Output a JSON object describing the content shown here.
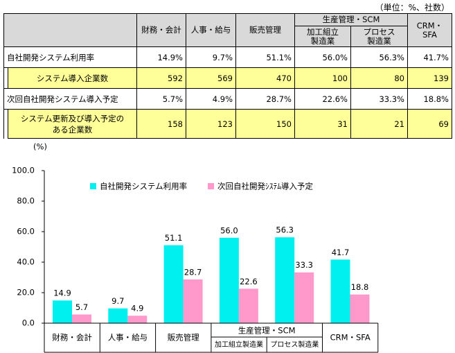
{
  "table": {
    "unit": "（単位：%、社数）",
    "group_header": "生産管理・SCM",
    "columns": [
      "財務・会計",
      "人事・給与",
      "販売管理",
      "加工組立\n製造業",
      "プロセス\n製造業",
      "CRM・SFA"
    ],
    "rows": [
      {
        "label": "自社開発システム利用率",
        "values": [
          "14.9%",
          "9.7%",
          "51.1%",
          "56.0%",
          "56.3%",
          "41.7%"
        ]
      },
      {
        "label": "システム導入企業数",
        "values": [
          "592",
          "569",
          "470",
          "100",
          "80",
          "139"
        ]
      },
      {
        "label": "次回自社開発システム導入予定",
        "values": [
          "5.7%",
          "4.9%",
          "28.7%",
          "22.6%",
          "33.3%",
          "18.8%"
        ]
      },
      {
        "label": "システム更新及び導入予定の\nある企業数",
        "values": [
          "158",
          "123",
          "150",
          "31",
          "21",
          "69"
        ]
      }
    ]
  },
  "chart_data": {
    "type": "bar",
    "y_label": "(%)",
    "group_label": "生産管理・SCM",
    "categories": [
      "財務・会計",
      "人事・給与",
      "販売管理",
      "加工組立製造業",
      "プロセス製造業",
      "CRM・SFA"
    ],
    "series": [
      {
        "name": "自社開発システム利用率",
        "color": "#00f0f0",
        "values": [
          14.9,
          9.7,
          51.1,
          56.0,
          56.3,
          41.7
        ],
        "value_labels": [
          "14.9",
          "9.7",
          "51.1",
          "56.0",
          "56.3",
          "41.7"
        ]
      },
      {
        "name": "次回自社開発ｼｽﾃﾑ導入予定",
        "color": "#ff99cc",
        "values": [
          5.7,
          4.9,
          28.7,
          22.6,
          33.3,
          18.8
        ],
        "value_labels": [
          "5.7",
          "4.9",
          "28.7",
          "22.6",
          "33.3",
          "18.8"
        ]
      }
    ],
    "ylim": [
      0,
      100
    ],
    "yticks": [
      {
        "value": 0,
        "label": "0.0"
      },
      {
        "value": 20,
        "label": "20.0"
      },
      {
        "value": 40,
        "label": "40.0"
      },
      {
        "value": 60,
        "label": "60.0"
      },
      {
        "value": 80,
        "label": "80.0"
      },
      {
        "value": 100,
        "label": "100.0"
      }
    ],
    "legend": "top"
  }
}
